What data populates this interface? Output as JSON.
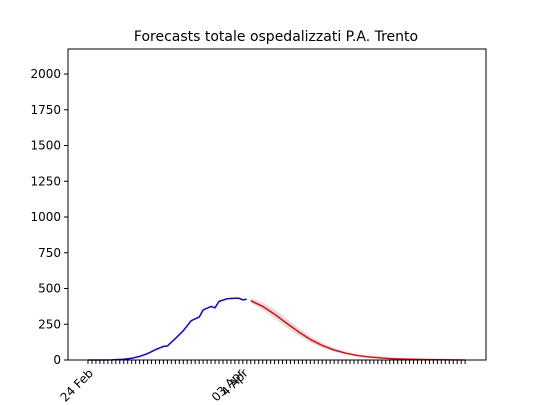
{
  "chart_data": {
    "type": "line",
    "title": "Forecasts totale ospedalizzati P.A. Trento",
    "xlabel": "",
    "ylabel": "",
    "x_start": "2020-02-24",
    "x_ticks_labeled": [
      "24 Feb",
      "03 Apr",
      "4 Apr"
    ],
    "ylim": [
      0,
      2175
    ],
    "yticks": [
      0,
      250,
      500,
      750,
      1000,
      1250,
      1500,
      1750,
      2000
    ],
    "grid": false,
    "legend": "none",
    "colors": {
      "observed": "#0000ff",
      "forecast": "#ff0000",
      "band": "#d9d9d9"
    },
    "series": [
      {
        "role": "observed",
        "x": [
          "2020-02-24",
          "2020-02-27",
          "2020-03-01",
          "2020-03-04",
          "2020-03-06",
          "2020-03-08",
          "2020-03-10",
          "2020-03-12",
          "2020-03-14",
          "2020-03-15",
          "2020-03-17",
          "2020-03-19",
          "2020-03-21",
          "2020-03-23",
          "2020-03-24",
          "2020-03-26",
          "2020-03-27",
          "2020-03-28",
          "2020-03-30",
          "2020-04-01",
          "2020-04-02",
          "2020-04-03",
          "2020-04-04"
        ],
        "y": [
          0,
          0,
          1,
          5,
          12,
          25,
          45,
          72,
          95,
          98,
          150,
          205,
          275,
          300,
          350,
          375,
          365,
          410,
          428,
          432,
          432,
          420,
          425
        ]
      },
      {
        "role": "forecast",
        "x": [
          "2020-04-05",
          "2020-04-08",
          "2020-04-11",
          "2020-04-14",
          "2020-04-17",
          "2020-04-20",
          "2020-04-23",
          "2020-04-26",
          "2020-04-29",
          "2020-05-02",
          "2020-05-05",
          "2020-05-08",
          "2020-05-11",
          "2020-05-14",
          "2020-05-17",
          "2020-05-20",
          "2020-05-23",
          "2020-05-26",
          "2020-05-29"
        ],
        "y": [
          415,
          375,
          320,
          258,
          198,
          144,
          102,
          70,
          47,
          31,
          21,
          14,
          9,
          6,
          4,
          3,
          2,
          1,
          0
        ],
        "lower": [
          400,
          352,
          290,
          228,
          170,
          122,
          86,
          59,
          40,
          27,
          18,
          12,
          8,
          5,
          3,
          2,
          1,
          0,
          0
        ],
        "upper": [
          430,
          405,
          355,
          290,
          225,
          166,
          118,
          81,
          55,
          36,
          24,
          16,
          10,
          7,
          5,
          3,
          2,
          1,
          0
        ]
      }
    ]
  }
}
